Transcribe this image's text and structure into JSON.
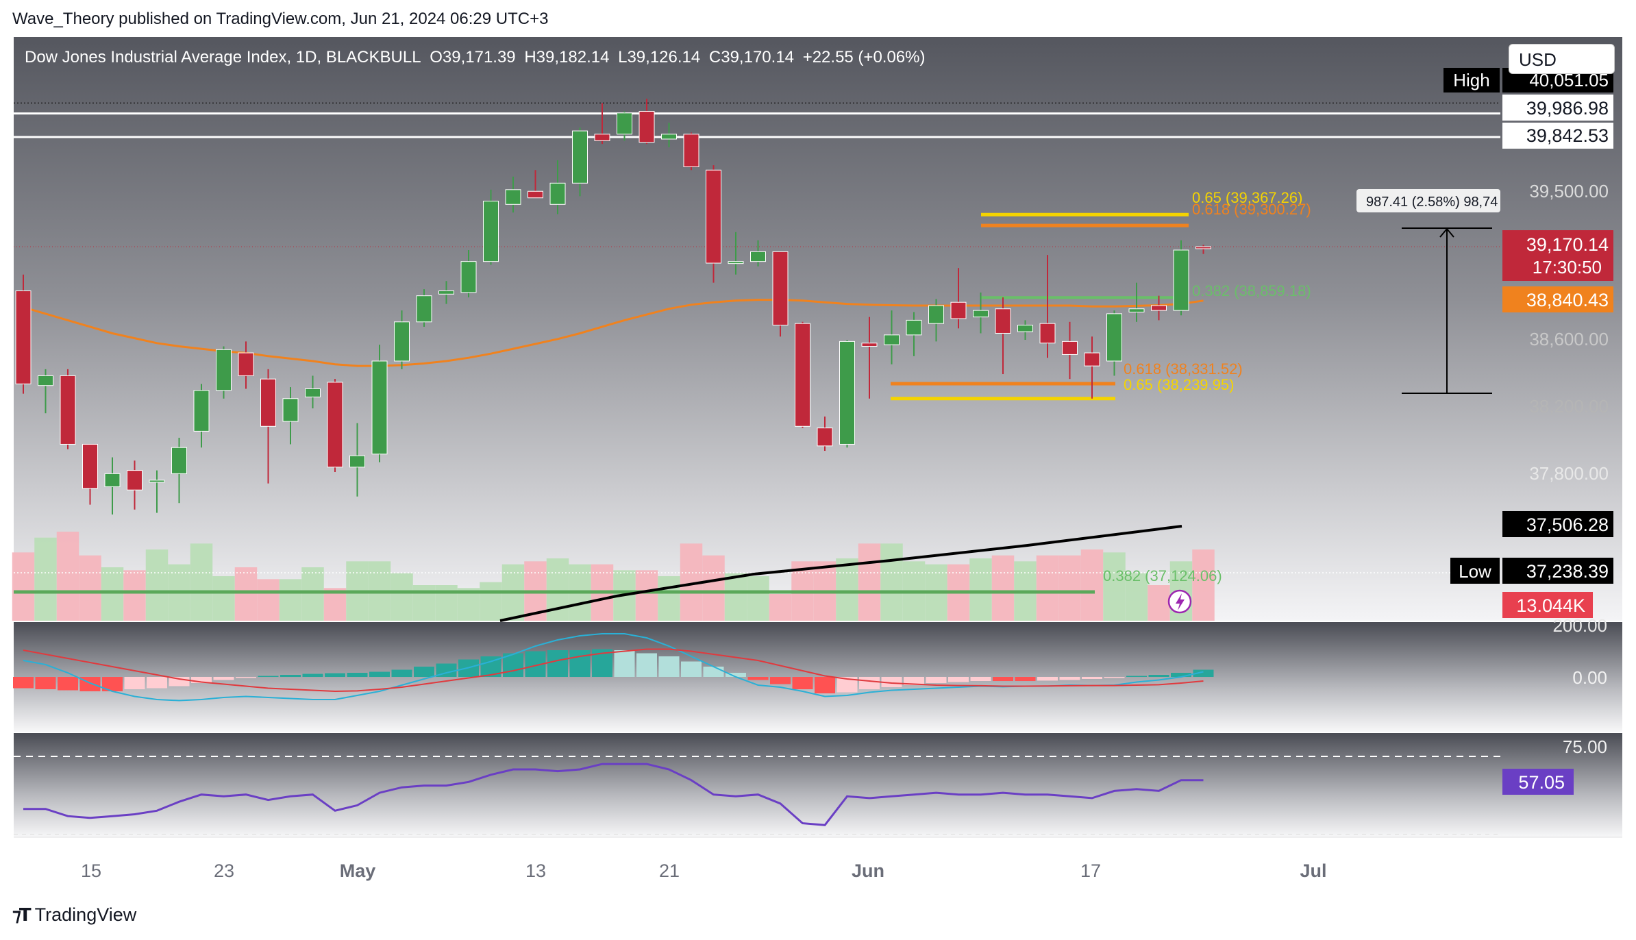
{
  "header": {
    "text": "Wave_Theory published on TradingView.com, Jun 21, 2024 06:29 UTC+3"
  },
  "symbol": {
    "name": "Dow Jones Industrial Average Index, 1D, BLACKBULL",
    "open": "O39,171.39",
    "high": "H39,182.14",
    "low": "L39,126.14",
    "close": "C39,170.14",
    "change": "+22.55 (+0.06%)"
  },
  "currency": "USD",
  "footer": {
    "brand": "TradingView"
  },
  "colors": {
    "up": "#3e9b4a",
    "down": "#c0283a",
    "ema50": "#f0821e",
    "ema200": "#000000",
    "macd_line": "#2ab0d6",
    "signal_line": "#e03a3e",
    "rsi": "#6a3fc4",
    "fib_yellow": "#f5d400",
    "fib_orange": "#f0821e",
    "fib_green": "#6abf69"
  },
  "price_axis": [
    "39,500.00",
    "38,600.00",
    "38,200.00",
    "37,800.00"
  ],
  "price_tags": {
    "high_label": "High",
    "high_value": "40,051.05",
    "level1": "39,986.98",
    "level2": "39,842.53",
    "last": "39,170.14",
    "countdown": "17:30:50",
    "ema": "38,840.43",
    "ema200": "37,506.28",
    "low_label": "Low",
    "low_value": "37,238.39",
    "volume": "13.044K"
  },
  "measure": {
    "label": "987.41 (2.58%) 98,74"
  },
  "fib_labels": {
    "upper_065": "0.65 (39,367.26)",
    "upper_0618": "0.618 (39,300.27)",
    "upper_0382": "0.382 (38,859.18)",
    "lower_0618": "0.618 (38,331.52)",
    "lower_065": "0.65 (38,239.95)",
    "lower_0382": "0.382 (37,124.06)"
  },
  "macd_axis": [
    "200.00",
    "0.00"
  ],
  "rsi_axis": {
    "upper": "75.00",
    "value": "57.05"
  },
  "time_axis": [
    "15",
    "23",
    "May",
    "13",
    "21",
    "Jun",
    "17",
    "Jul"
  ],
  "chart_data": {
    "type": "candlestick",
    "title": "Dow Jones Industrial Average Index, 1D, BLACKBULL",
    "ylim": [
      37000,
      40100
    ],
    "candles": [
      {
        "o": 38900,
        "h": 39000,
        "l": 38270,
        "c": 38330
      },
      {
        "o": 38320,
        "h": 38420,
        "l": 38150,
        "c": 38380
      },
      {
        "o": 38380,
        "h": 38420,
        "l": 37930,
        "c": 37960
      },
      {
        "o": 37960,
        "h": 37960,
        "l": 37590,
        "c": 37690
      },
      {
        "o": 37700,
        "h": 37880,
        "l": 37530,
        "c": 37780
      },
      {
        "o": 37800,
        "h": 37860,
        "l": 37560,
        "c": 37680
      },
      {
        "o": 37730,
        "h": 37800,
        "l": 37540,
        "c": 37740
      },
      {
        "o": 37780,
        "h": 38000,
        "l": 37600,
        "c": 37940
      },
      {
        "o": 38040,
        "h": 38330,
        "l": 37940,
        "c": 38290
      },
      {
        "o": 38290,
        "h": 38560,
        "l": 38240,
        "c": 38540
      },
      {
        "o": 38520,
        "h": 38590,
        "l": 38300,
        "c": 38380
      },
      {
        "o": 38360,
        "h": 38420,
        "l": 37720,
        "c": 38070
      },
      {
        "o": 38100,
        "h": 38310,
        "l": 37960,
        "c": 38240
      },
      {
        "o": 38250,
        "h": 38380,
        "l": 38180,
        "c": 38300
      },
      {
        "o": 38340,
        "h": 38360,
        "l": 37790,
        "c": 37820
      },
      {
        "o": 37820,
        "h": 38090,
        "l": 37640,
        "c": 37890
      },
      {
        "o": 37900,
        "h": 38570,
        "l": 37850,
        "c": 38470
      },
      {
        "o": 38470,
        "h": 38780,
        "l": 38420,
        "c": 38710
      },
      {
        "o": 38710,
        "h": 38910,
        "l": 38680,
        "c": 38870
      },
      {
        "o": 38880,
        "h": 38960,
        "l": 38820,
        "c": 38900
      },
      {
        "o": 38890,
        "h": 39150,
        "l": 38860,
        "c": 39080
      },
      {
        "o": 39080,
        "h": 39520,
        "l": 39060,
        "c": 39450
      },
      {
        "o": 39430,
        "h": 39600,
        "l": 39380,
        "c": 39520
      },
      {
        "o": 39510,
        "h": 39640,
        "l": 39470,
        "c": 39470
      },
      {
        "o": 39430,
        "h": 39700,
        "l": 39370,
        "c": 39560
      },
      {
        "o": 39560,
        "h": 39900,
        "l": 39480,
        "c": 39880
      },
      {
        "o": 39860,
        "h": 40050,
        "l": 39800,
        "c": 39820
      },
      {
        "o": 39860,
        "h": 40000,
        "l": 39820,
        "c": 39990
      },
      {
        "o": 40000,
        "h": 40077,
        "l": 39800,
        "c": 39810
      },
      {
        "o": 39830,
        "h": 39930,
        "l": 39780,
        "c": 39860
      },
      {
        "o": 39860,
        "h": 39870,
        "l": 39640,
        "c": 39660
      },
      {
        "o": 39640,
        "h": 39670,
        "l": 38950,
        "c": 39070
      },
      {
        "o": 39080,
        "h": 39260,
        "l": 39000,
        "c": 39080
      },
      {
        "o": 39080,
        "h": 39210,
        "l": 39050,
        "c": 39140
      },
      {
        "o": 39140,
        "h": 39140,
        "l": 38620,
        "c": 38690
      },
      {
        "o": 38700,
        "h": 38710,
        "l": 38060,
        "c": 38070
      },
      {
        "o": 38060,
        "h": 38130,
        "l": 37920,
        "c": 37950
      },
      {
        "o": 37960,
        "h": 38600,
        "l": 37940,
        "c": 38590
      },
      {
        "o": 38580,
        "h": 38740,
        "l": 38240,
        "c": 38560
      },
      {
        "o": 38570,
        "h": 38780,
        "l": 38450,
        "c": 38630
      },
      {
        "o": 38630,
        "h": 38770,
        "l": 38500,
        "c": 38720
      },
      {
        "o": 38700,
        "h": 38850,
        "l": 38590,
        "c": 38810
      },
      {
        "o": 38830,
        "h": 39040,
        "l": 38670,
        "c": 38730
      },
      {
        "o": 38740,
        "h": 38890,
        "l": 38640,
        "c": 38780
      },
      {
        "o": 38790,
        "h": 38860,
        "l": 38390,
        "c": 38640
      },
      {
        "o": 38650,
        "h": 38720,
        "l": 38600,
        "c": 38690
      },
      {
        "o": 38700,
        "h": 39120,
        "l": 38490,
        "c": 38580
      },
      {
        "o": 38590,
        "h": 38710,
        "l": 38360,
        "c": 38510
      },
      {
        "o": 38520,
        "h": 38620,
        "l": 38240,
        "c": 38440
      },
      {
        "o": 38470,
        "h": 38780,
        "l": 38380,
        "c": 38760
      },
      {
        "o": 38770,
        "h": 38950,
        "l": 38710,
        "c": 38790
      },
      {
        "o": 38810,
        "h": 38870,
        "l": 38720,
        "c": 38780
      },
      {
        "o": 38780,
        "h": 39210,
        "l": 38750,
        "c": 39150
      },
      {
        "o": 39171,
        "h": 39182,
        "l": 39126,
        "c": 39170
      }
    ],
    "ema50": [
      38800,
      38760,
      38720,
      38680,
      38640,
      38610,
      38580,
      38560,
      38545,
      38530,
      38520,
      38500,
      38485,
      38470,
      38450,
      38440,
      38440,
      38445,
      38455,
      38470,
      38490,
      38515,
      38545,
      38575,
      38605,
      38640,
      38680,
      38720,
      38755,
      38790,
      38815,
      38830,
      38840,
      38845,
      38845,
      38840,
      38830,
      38820,
      38815,
      38812,
      38810,
      38810,
      38810,
      38810,
      38810,
      38810,
      38810,
      38810,
      38805,
      38805,
      38808,
      38812,
      38820,
      38840
    ],
    "volume": [
      1.15,
      1.4,
      1.5,
      1.1,
      0.9,
      0.85,
      1.2,
      0.95,
      1.3,
      0.75,
      0.9,
      0.7,
      0.7,
      0.9,
      0.55,
      1.0,
      1.0,
      0.8,
      0.6,
      0.6,
      0.55,
      0.65,
      0.95,
      1.0,
      1.05,
      0.95,
      0.95,
      0.85,
      0.85,
      0.75,
      1.3,
      1.1,
      0.8,
      0.75,
      0.45,
      1.0,
      1.0,
      1.05,
      1.3,
      1.3,
      1.0,
      0.95,
      0.95,
      1.05,
      1.1,
      1.0,
      1.1,
      1.1,
      1.2,
      1.15,
      0.8,
      0.6,
      1.0,
      1.2
    ],
    "macd_hist": [
      -55,
      -60,
      -65,
      -70,
      -70,
      -60,
      -55,
      -45,
      -30,
      -15,
      -5,
      5,
      10,
      15,
      18,
      20,
      25,
      35,
      50,
      65,
      85,
      100,
      115,
      125,
      130,
      130,
      135,
      130,
      115,
      100,
      75,
      50,
      20,
      -15,
      -35,
      -60,
      -80,
      -75,
      -60,
      -50,
      -40,
      -30,
      -25,
      -20,
      -20,
      -20,
      -18,
      -15,
      -10,
      -5,
      5,
      10,
      20,
      35
    ],
    "macd_line": [
      80,
      60,
      20,
      -30,
      -70,
      -95,
      -110,
      -115,
      -110,
      -100,
      -95,
      -100,
      -105,
      -110,
      -110,
      -90,
      -70,
      -40,
      -10,
      20,
      45,
      75,
      110,
      150,
      180,
      200,
      210,
      210,
      190,
      150,
      100,
      50,
      0,
      -40,
      -50,
      -70,
      -95,
      -90,
      -75,
      -65,
      -60,
      -55,
      -50,
      -45,
      -48,
      -45,
      -45,
      -40,
      -42,
      -40,
      -25,
      -15,
      0,
      25
    ],
    "signal_line": [
      130,
      110,
      90,
      70,
      50,
      30,
      10,
      -10,
      -25,
      -35,
      -45,
      -55,
      -60,
      -65,
      -70,
      -68,
      -60,
      -50,
      -35,
      -20,
      -5,
      10,
      30,
      55,
      80,
      100,
      115,
      125,
      135,
      135,
      125,
      110,
      95,
      80,
      55,
      30,
      5,
      -10,
      -20,
      -30,
      -35,
      -40,
      -42,
      -43,
      -45,
      -45,
      -44,
      -43,
      -42,
      -42,
      -40,
      -38,
      -30,
      -20
    ],
    "rsi": [
      45,
      45,
      41,
      40,
      41,
      42,
      44,
      49,
      53,
      52,
      53,
      50,
      52,
      53,
      44,
      47,
      54,
      57,
      58,
      58,
      60,
      64,
      67,
      67,
      66,
      67,
      70,
      70,
      70,
      67,
      61,
      53,
      52,
      53,
      48,
      37,
      36,
      52,
      51,
      52,
      53,
      54,
      53,
      53,
      54,
      53,
      53,
      52,
      51,
      55,
      56,
      55,
      61,
      61
    ]
  }
}
